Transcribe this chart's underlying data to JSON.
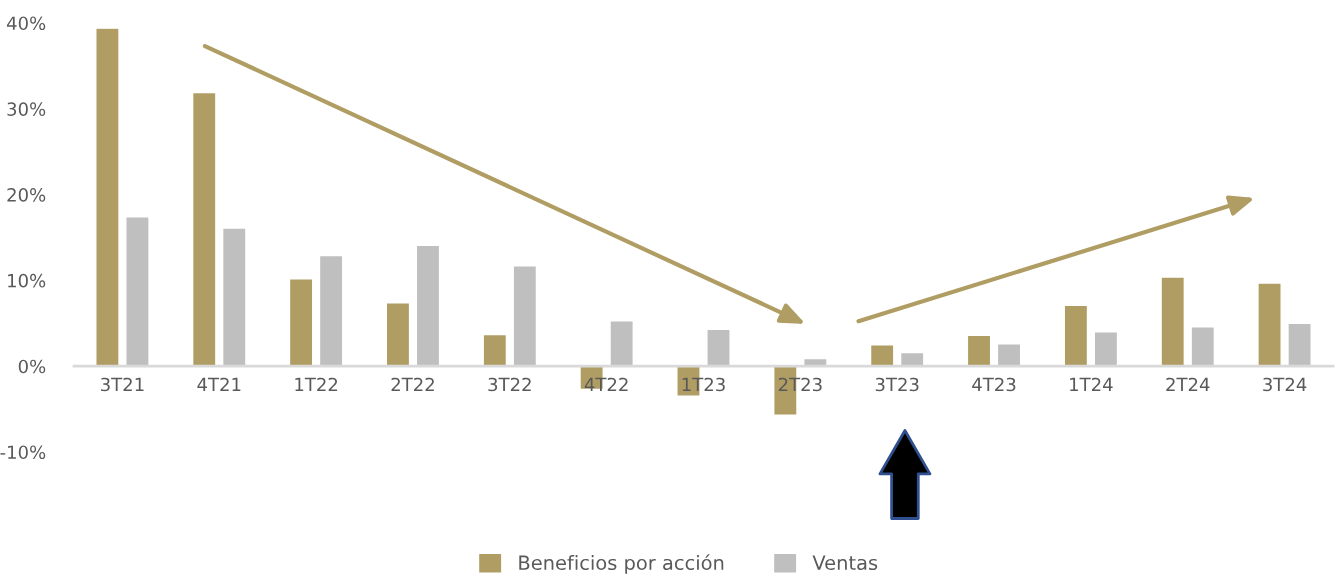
{
  "chart_data": {
    "type": "bar",
    "categories": [
      "3T21",
      "4T21",
      "1T22",
      "2T22",
      "3T22",
      "4T22",
      "1T23",
      "2T23",
      "3T23",
      "4T23",
      "1T24",
      "2T24",
      "3T24"
    ],
    "series": [
      {
        "name": "Beneficios por acción",
        "color": "#b09d63",
        "values": [
          39.4,
          31.9,
          10.2,
          7.4,
          3.7,
          -2.7,
          -3.5,
          -5.7,
          2.5,
          3.6,
          7.1,
          10.4,
          9.7
        ]
      },
      {
        "name": "Ventas",
        "color": "#bfbfbf",
        "values": [
          17.4,
          16.1,
          12.9,
          14.1,
          11.7,
          5.3,
          4.3,
          0.9,
          1.6,
          2.6,
          4.0,
          4.6,
          5.0
        ]
      }
    ],
    "ylim": [
      -10,
      40
    ],
    "yticks": [
      {
        "value": -10,
        "label": "-10%"
      },
      {
        "value": 0,
        "label": "0%"
      },
      {
        "value": 10,
        "label": "10%"
      },
      {
        "value": 20,
        "label": "20%"
      },
      {
        "value": 30,
        "label": "30%"
      },
      {
        "value": 40,
        "label": "40%"
      }
    ],
    "grid": false,
    "legend": "bottom"
  }
}
